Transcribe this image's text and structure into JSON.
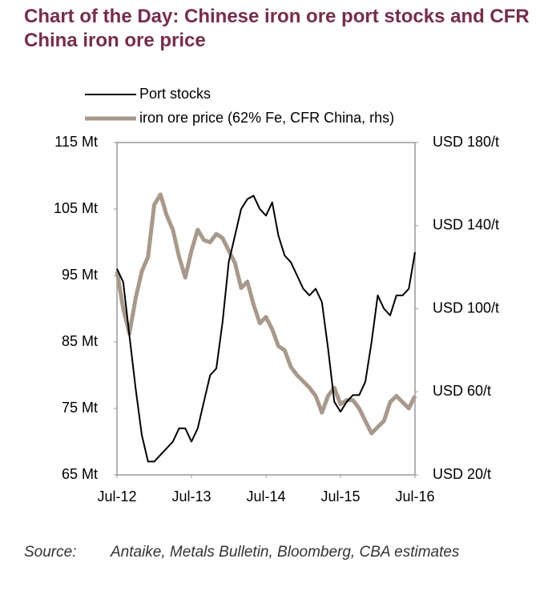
{
  "chart_data": {
    "type": "line",
    "title": "Chart of the Day: Chinese iron ore port stocks and CFR China iron ore price",
    "source_label": "Source:",
    "source": "Antaike, Metals Bulletin, Bloomberg, CBA estimates",
    "x": [
      "Jul-12",
      "Aug-12",
      "Sep-12",
      "Oct-12",
      "Nov-12",
      "Dec-12",
      "Jan-13",
      "Feb-13",
      "Mar-13",
      "Apr-13",
      "May-13",
      "Jun-13",
      "Jul-13",
      "Aug-13",
      "Sep-13",
      "Oct-13",
      "Nov-13",
      "Dec-13",
      "Jan-14",
      "Feb-14",
      "Mar-14",
      "Apr-14",
      "May-14",
      "Jun-14",
      "Jul-14",
      "Aug-14",
      "Sep-14",
      "Oct-14",
      "Nov-14",
      "Dec-14",
      "Jan-15",
      "Feb-15",
      "Mar-15",
      "Apr-15",
      "May-15",
      "Jun-15",
      "Jul-15",
      "Aug-15",
      "Sep-15",
      "Oct-15",
      "Nov-15",
      "Dec-15",
      "Jan-16",
      "Feb-16",
      "Mar-16",
      "Apr-16",
      "May-16",
      "Jun-16",
      "Jul-16"
    ],
    "xticks": [
      "Jul-12",
      "Jul-13",
      "Jul-14",
      "Jul-15",
      "Jul-16"
    ],
    "series": [
      {
        "name": "Port stocks",
        "color": "#000000",
        "values": [
          96,
          94,
          86,
          78,
          71,
          67,
          67,
          68,
          69,
          70,
          72,
          72,
          70,
          72,
          76,
          80,
          81,
          88,
          97,
          101,
          105,
          106.5,
          107,
          105,
          104,
          106,
          101,
          98,
          97,
          95,
          93,
          92,
          93,
          91,
          84,
          76,
          74.5,
          76,
          77,
          77,
          79,
          85,
          92,
          90,
          89,
          92,
          92,
          93,
          98.5
        ]
      },
      {
        "name": "iron ore price (62% Fe, CFR China, rhs)",
        "color": "#a8998a",
        "axis": "y2",
        "values": [
          118,
          100,
          88,
          105,
          118,
          125,
          150,
          155,
          145,
          138,
          125,
          115,
          128,
          138,
          133,
          132,
          136,
          134,
          128,
          122,
          110,
          113,
          102,
          93,
          96,
          90,
          82,
          80,
          72,
          68,
          65,
          62,
          58,
          50,
          58,
          62,
          54,
          56,
          56,
          52,
          46,
          40,
          43,
          46,
          55,
          58,
          55,
          52,
          58
        ]
      }
    ],
    "ylim": [
      65,
      115
    ],
    "yticks": [
      {
        "value": 65,
        "label": "65 Mt"
      },
      {
        "value": 75,
        "label": "75 Mt"
      },
      {
        "value": 85,
        "label": "85 Mt"
      },
      {
        "value": 95,
        "label": "95 Mt"
      },
      {
        "value": 105,
        "label": "105 Mt"
      },
      {
        "value": 115,
        "label": "115 Mt"
      }
    ],
    "y2lim": [
      20,
      180
    ],
    "y2ticks": [
      {
        "value": 20,
        "label": "USD 20/t"
      },
      {
        "value": 60,
        "label": "USD 60/t"
      },
      {
        "value": 100,
        "label": "USD 100/t"
      },
      {
        "value": 140,
        "label": "USD 140/t"
      },
      {
        "value": 180,
        "label": "USD 180/t"
      }
    ]
  }
}
